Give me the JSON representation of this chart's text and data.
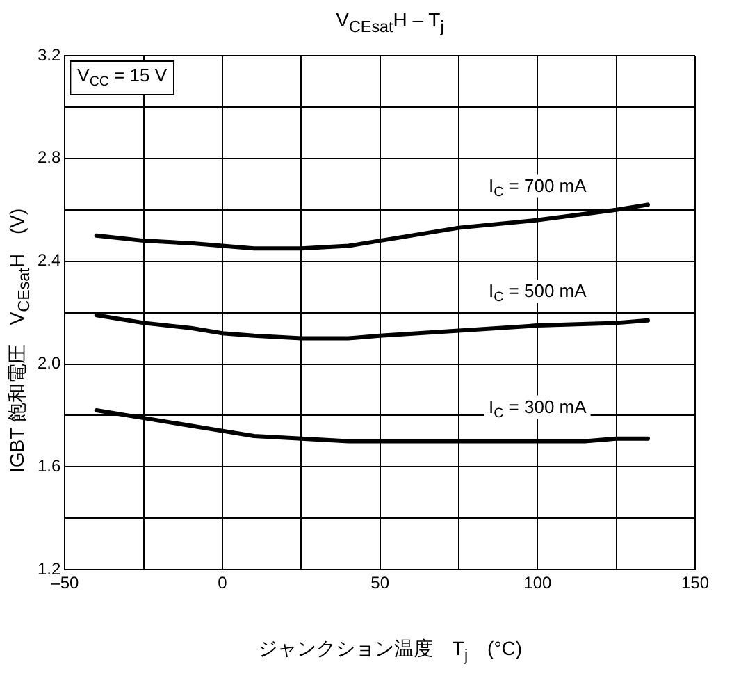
{
  "chart_data": {
    "type": "line",
    "title": "V$_{CEsat}$H – T$_{j}$",
    "xlabel": "ジャンクション温度　T$_{j}$　(°C)",
    "ylabel": "IGBT 飽和電圧　V$_{CEsat}$H　(V)",
    "series": [
      {
        "name": "I$_{C}$ = 700 mA",
        "color": "#000000",
        "x": [
          -40,
          -25,
          -10,
          0,
          10,
          25,
          40,
          50,
          75,
          100,
          125,
          135
        ],
        "values": [
          2.5,
          2.48,
          2.47,
          2.46,
          2.45,
          2.45,
          2.46,
          2.48,
          2.53,
          2.56,
          2.6,
          2.62
        ]
      },
      {
        "name": "I$_{C}$ = 500 mA",
        "color": "#000000",
        "x": [
          -40,
          -25,
          -10,
          0,
          10,
          25,
          40,
          50,
          75,
          100,
          125,
          135
        ],
        "values": [
          2.19,
          2.16,
          2.14,
          2.12,
          2.11,
          2.1,
          2.1,
          2.11,
          2.13,
          2.15,
          2.16,
          2.17
        ]
      },
      {
        "name": "I$_{C}$ = 300 mA",
        "color": "#000000",
        "x": [
          -40,
          -25,
          -10,
          0,
          10,
          25,
          40,
          50,
          75,
          100,
          115,
          125,
          135
        ],
        "values": [
          1.82,
          1.79,
          1.76,
          1.74,
          1.72,
          1.71,
          1.7,
          1.7,
          1.7,
          1.7,
          1.7,
          1.71,
          1.71
        ]
      }
    ],
    "annotations": [
      "V$_{CC}$ = 15 V"
    ],
    "xlim": [
      -50,
      150
    ],
    "xticks": [
      {
        "value": -50,
        "label": "–50"
      },
      {
        "value": -25,
        "label": null
      },
      0,
      {
        "value": 25,
        "label": null
      },
      50,
      {
        "value": 75,
        "label": null
      },
      100,
      {
        "value": 125,
        "label": null
      },
      150
    ],
    "ylim": [
      1.2,
      3.2
    ],
    "yticks": [
      1.2,
      {
        "value": 1.4,
        "label": null
      },
      1.6,
      {
        "value": 1.8,
        "label": null
      },
      {
        "value": 2.0,
        "label": "2.0"
      },
      {
        "value": 2.2,
        "label": null
      },
      2.4,
      {
        "value": 2.6,
        "label": null
      },
      2.8,
      {
        "value": 3.0,
        "label": null
      },
      3.2
    ],
    "grid": true,
    "legend": false,
    "marker": "none",
    "line_style": "solid"
  }
}
